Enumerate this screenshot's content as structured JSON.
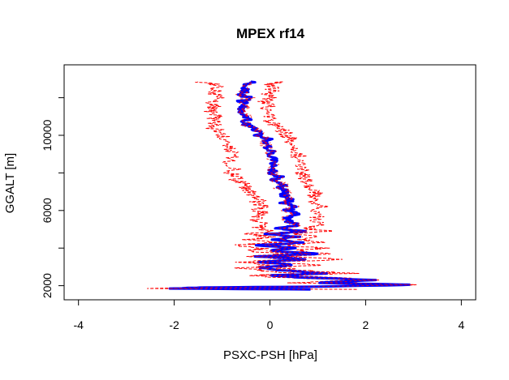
{
  "chart_data": {
    "type": "line",
    "title": "MPEX rf14",
    "xlabel": "PSXC-PSH [hPa]",
    "ylabel": "GGALT [m]",
    "xlim": [
      -4.3,
      4.3
    ],
    "ylim": [
      1250,
      13750
    ],
    "x_ticks": [
      -4,
      -2,
      0,
      2,
      4
    ],
    "y_ticks": [
      2000,
      4000,
      6000,
      8000,
      10000,
      12000
    ],
    "y_tick_labels": [
      "2000",
      "",
      "6000",
      "",
      "10000",
      ""
    ],
    "grid": false,
    "legend": "none",
    "colors": {
      "mean": "#0000ff",
      "envelope": "#ff0000"
    },
    "series": [
      {
        "line": "mean",
        "points": [
          [
            0.85,
            1800
          ],
          [
            -2.0,
            1850
          ],
          [
            -1.5,
            1900
          ],
          [
            1.0,
            1950
          ],
          [
            3.0,
            2050
          ],
          [
            1.0,
            2150
          ],
          [
            2.2,
            2300
          ],
          [
            0.6,
            2450
          ],
          [
            0.0,
            2550
          ],
          [
            1.2,
            2650
          ],
          [
            0.3,
            2800
          ],
          [
            -0.2,
            2950
          ],
          [
            0.5,
            3100
          ],
          [
            -0.3,
            3250
          ],
          [
            0.8,
            3400
          ],
          [
            -0.2,
            3550
          ],
          [
            1.0,
            3700
          ],
          [
            0.0,
            3850
          ],
          [
            0.5,
            4000
          ],
          [
            -0.2,
            4150
          ],
          [
            0.7,
            4300
          ],
          [
            0.1,
            4450
          ],
          [
            0.6,
            4600
          ],
          [
            0.0,
            4750
          ],
          [
            0.7,
            4900
          ],
          [
            0.2,
            5050
          ],
          [
            0.6,
            5200
          ],
          [
            0.4,
            5400
          ],
          [
            0.3,
            5600
          ],
          [
            0.55,
            5800
          ],
          [
            0.35,
            6000
          ],
          [
            0.5,
            6200
          ],
          [
            0.3,
            6400
          ],
          [
            0.45,
            6600
          ],
          [
            0.3,
            6800
          ],
          [
            0.35,
            7000
          ],
          [
            0.2,
            7200
          ],
          [
            0.3,
            7400
          ],
          [
            0.1,
            7600
          ],
          [
            0.2,
            7800
          ],
          [
            0.05,
            8000
          ],
          [
            0.1,
            8300
          ],
          [
            0.05,
            8600
          ],
          [
            0.05,
            8900
          ],
          [
            0.0,
            9200
          ],
          [
            -0.1,
            9500
          ],
          [
            -0.05,
            9800
          ],
          [
            -0.25,
            10000
          ],
          [
            -0.2,
            10200
          ],
          [
            -0.4,
            10400
          ],
          [
            -0.5,
            10600
          ],
          [
            -0.5,
            10800
          ],
          [
            -0.45,
            11000
          ],
          [
            -0.6,
            11200
          ],
          [
            -0.55,
            11400
          ],
          [
            -0.5,
            11600
          ],
          [
            -0.6,
            11800
          ],
          [
            -0.45,
            12000
          ],
          [
            -0.6,
            12200
          ],
          [
            -0.5,
            12400
          ],
          [
            -0.45,
            12700
          ],
          [
            -0.4,
            12850
          ]
        ]
      },
      {
        "line": "envelope",
        "points": [
          [
            -0.2,
            1800
          ],
          [
            -2.4,
            1850
          ],
          [
            -1.8,
            1900
          ],
          [
            0.5,
            1950
          ],
          [
            2.6,
            2050
          ],
          [
            0.5,
            2150
          ],
          [
            1.8,
            2300
          ],
          [
            0.1,
            2450
          ],
          [
            -0.4,
            2550
          ],
          [
            0.6,
            2650
          ],
          [
            -0.2,
            2800
          ],
          [
            -0.6,
            2950
          ],
          [
            0.0,
            3100
          ],
          [
            -0.6,
            3250
          ],
          [
            0.3,
            3400
          ],
          [
            -0.6,
            3550
          ],
          [
            0.4,
            3700
          ],
          [
            -0.5,
            3850
          ],
          [
            -0.1,
            4000
          ],
          [
            -0.7,
            4150
          ],
          [
            0.1,
            4300
          ],
          [
            -0.5,
            4450
          ],
          [
            0.0,
            4600
          ],
          [
            -0.4,
            4750
          ],
          [
            0.0,
            4900
          ],
          [
            -0.3,
            5050
          ],
          [
            -0.1,
            5200
          ],
          [
            -0.2,
            5400
          ],
          [
            -0.3,
            5600
          ],
          [
            -0.1,
            5800
          ],
          [
            -0.25,
            6000
          ],
          [
            -0.15,
            6200
          ],
          [
            -0.3,
            6400
          ],
          [
            -0.2,
            6600
          ],
          [
            -0.4,
            6800
          ],
          [
            -0.4,
            7000
          ],
          [
            -0.55,
            7200
          ],
          [
            -0.5,
            7400
          ],
          [
            -0.7,
            7600
          ],
          [
            -0.65,
            7800
          ],
          [
            -0.8,
            8000
          ],
          [
            -0.75,
            8300
          ],
          [
            -0.85,
            8600
          ],
          [
            -0.8,
            8900
          ],
          [
            -0.85,
            9200
          ],
          [
            -0.95,
            9500
          ],
          [
            -0.9,
            9800
          ],
          [
            -1.0,
            10000
          ],
          [
            -1.05,
            10200
          ],
          [
            -1.2,
            10400
          ],
          [
            -1.15,
            10600
          ],
          [
            -1.2,
            10800
          ],
          [
            -1.1,
            11000
          ],
          [
            -1.25,
            11200
          ],
          [
            -1.2,
            11400
          ],
          [
            -1.1,
            11600
          ],
          [
            -1.25,
            11800
          ],
          [
            -1.1,
            12000
          ],
          [
            -1.2,
            12200
          ],
          [
            -1.1,
            12400
          ],
          [
            -1.1,
            12700
          ],
          [
            -1.5,
            12850
          ]
        ]
      },
      {
        "line": "envelope",
        "points": [
          [
            1.9,
            1800
          ],
          [
            -1.5,
            1850
          ],
          [
            -1.2,
            1900
          ],
          [
            1.4,
            1950
          ],
          [
            3.2,
            2050
          ],
          [
            1.5,
            2150
          ],
          [
            2.4,
            2300
          ],
          [
            1.1,
            2450
          ],
          [
            0.4,
            2550
          ],
          [
            1.7,
            2650
          ],
          [
            0.8,
            2800
          ],
          [
            0.2,
            2950
          ],
          [
            1.0,
            3100
          ],
          [
            0.1,
            3250
          ],
          [
            1.6,
            3400
          ],
          [
            0.3,
            3550
          ],
          [
            1.4,
            3700
          ],
          [
            0.5,
            3850
          ],
          [
            1.1,
            4000
          ],
          [
            0.3,
            4150
          ],
          [
            1.2,
            4300
          ],
          [
            0.6,
            4450
          ],
          [
            1.1,
            4600
          ],
          [
            0.5,
            4750
          ],
          [
            1.2,
            4900
          ],
          [
            0.7,
            5050
          ],
          [
            1.1,
            5200
          ],
          [
            1.0,
            5400
          ],
          [
            0.9,
            5600
          ],
          [
            1.1,
            5800
          ],
          [
            0.95,
            6000
          ],
          [
            1.05,
            6200
          ],
          [
            0.9,
            6400
          ],
          [
            1.0,
            6600
          ],
          [
            0.9,
            6800
          ],
          [
            0.95,
            7000
          ],
          [
            0.8,
            7200
          ],
          [
            0.9,
            7400
          ],
          [
            0.7,
            7600
          ],
          [
            0.8,
            7800
          ],
          [
            0.65,
            8000
          ],
          [
            0.7,
            8300
          ],
          [
            0.6,
            8600
          ],
          [
            0.6,
            8900
          ],
          [
            0.55,
            9200
          ],
          [
            0.5,
            9500
          ],
          [
            0.45,
            9800
          ],
          [
            0.35,
            10000
          ],
          [
            0.3,
            10200
          ],
          [
            0.15,
            10400
          ],
          [
            0.05,
            10600
          ],
          [
            0.0,
            10800
          ],
          [
            0.0,
            11000
          ],
          [
            -0.1,
            11200
          ],
          [
            -0.05,
            11400
          ],
          [
            0.0,
            11600
          ],
          [
            -0.1,
            11800
          ],
          [
            0.05,
            12000
          ],
          [
            -0.05,
            12200
          ],
          [
            0.05,
            12400
          ],
          [
            0.0,
            12700
          ],
          [
            0.3,
            12850
          ]
        ]
      }
    ]
  }
}
